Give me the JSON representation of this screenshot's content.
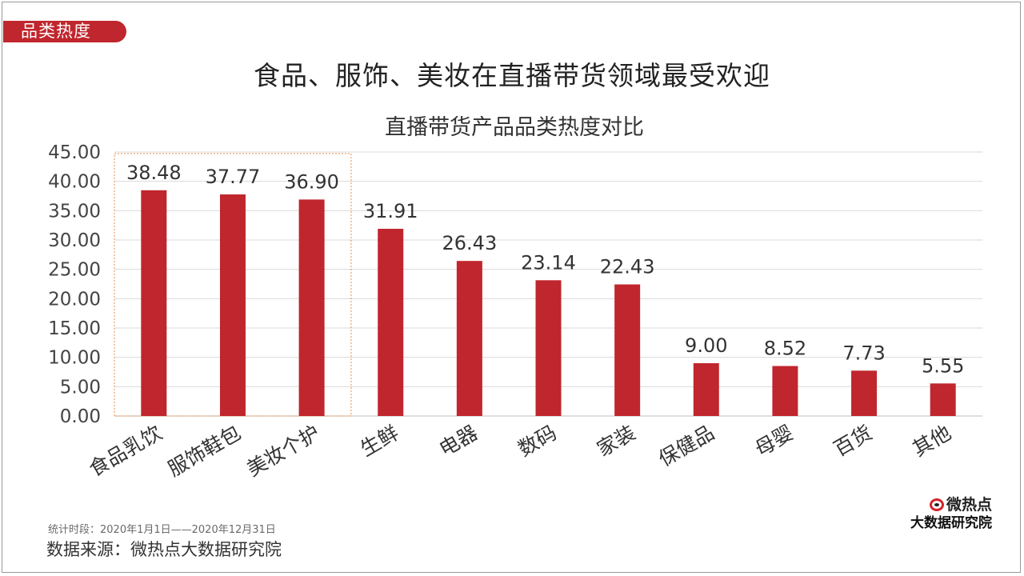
{
  "page": {
    "tag": "品类热度",
    "headline": "食品、服饰、美妆在直播带货领域最受欢迎",
    "note": "统计时段：2020年1月1日——2020年12月31日",
    "source": "数据来源：微热点大数据研究院",
    "brand_line1": "微热点",
    "brand_line2": "大数据研究院"
  },
  "colors": {
    "bar": "#c0262d",
    "tag": "#c0262d",
    "grid": "#d9d9d9",
    "highlight_border": "#e58a45"
  },
  "chart_data": {
    "type": "bar",
    "title": "直播带货产品品类热度对比",
    "categories": [
      "食品乳饮",
      "服饰鞋包",
      "美妆个护",
      "生鲜",
      "电器",
      "数码",
      "家装",
      "保健品",
      "母婴",
      "百货",
      "其他"
    ],
    "values": [
      38.48,
      37.77,
      36.9,
      31.91,
      26.43,
      23.14,
      22.43,
      9.0,
      8.52,
      7.73,
      5.55
    ],
    "value_labels": [
      "38.48",
      "37.77",
      "36.90",
      "31.91",
      "26.43",
      "23.14",
      "22.43",
      "9.00",
      "8.52",
      "7.73",
      "5.55"
    ],
    "y_ticks": [
      "0.00",
      "5.00",
      "10.00",
      "15.00",
      "20.00",
      "25.00",
      "30.00",
      "35.00",
      "40.00",
      "45.00"
    ],
    "ylim": [
      0,
      45
    ],
    "xlabel": "",
    "ylabel": "",
    "grid": true,
    "highlight_categories": [
      "食品乳饮",
      "服饰鞋包",
      "美妆个护"
    ]
  }
}
